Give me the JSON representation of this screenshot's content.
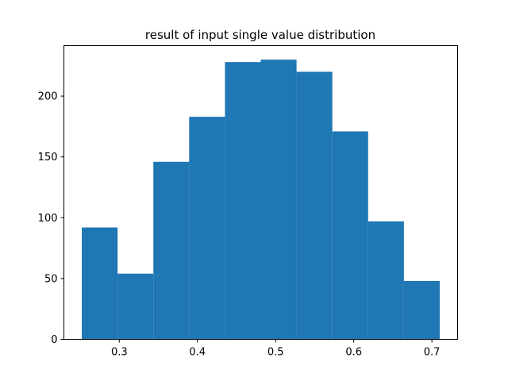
{
  "chart_data": {
    "type": "bar",
    "title": "result of input single value distribution",
    "xlabel": "",
    "ylabel": "",
    "bin_edges": [
      0.252,
      0.2978,
      0.3436,
      0.3894,
      0.4352,
      0.481,
      0.5268,
      0.5726,
      0.6184,
      0.6642,
      0.71
    ],
    "values": [
      92,
      54,
      146,
      183,
      228,
      230,
      220,
      171,
      97,
      48
    ],
    "xlim": [
      0.2291,
      0.7329
    ],
    "ylim": [
      0,
      241.5
    ],
    "xticks": [
      0.3,
      0.4,
      0.5,
      0.6,
      0.7
    ],
    "xtick_labels": [
      "0.3",
      "0.4",
      "0.5",
      "0.6",
      "0.7"
    ],
    "yticks": [
      0,
      50,
      100,
      150,
      200
    ],
    "ytick_labels": [
      "0",
      "50",
      "100",
      "150",
      "200"
    ],
    "bar_color": "#1f77b4",
    "grid": false,
    "legend": "none"
  }
}
